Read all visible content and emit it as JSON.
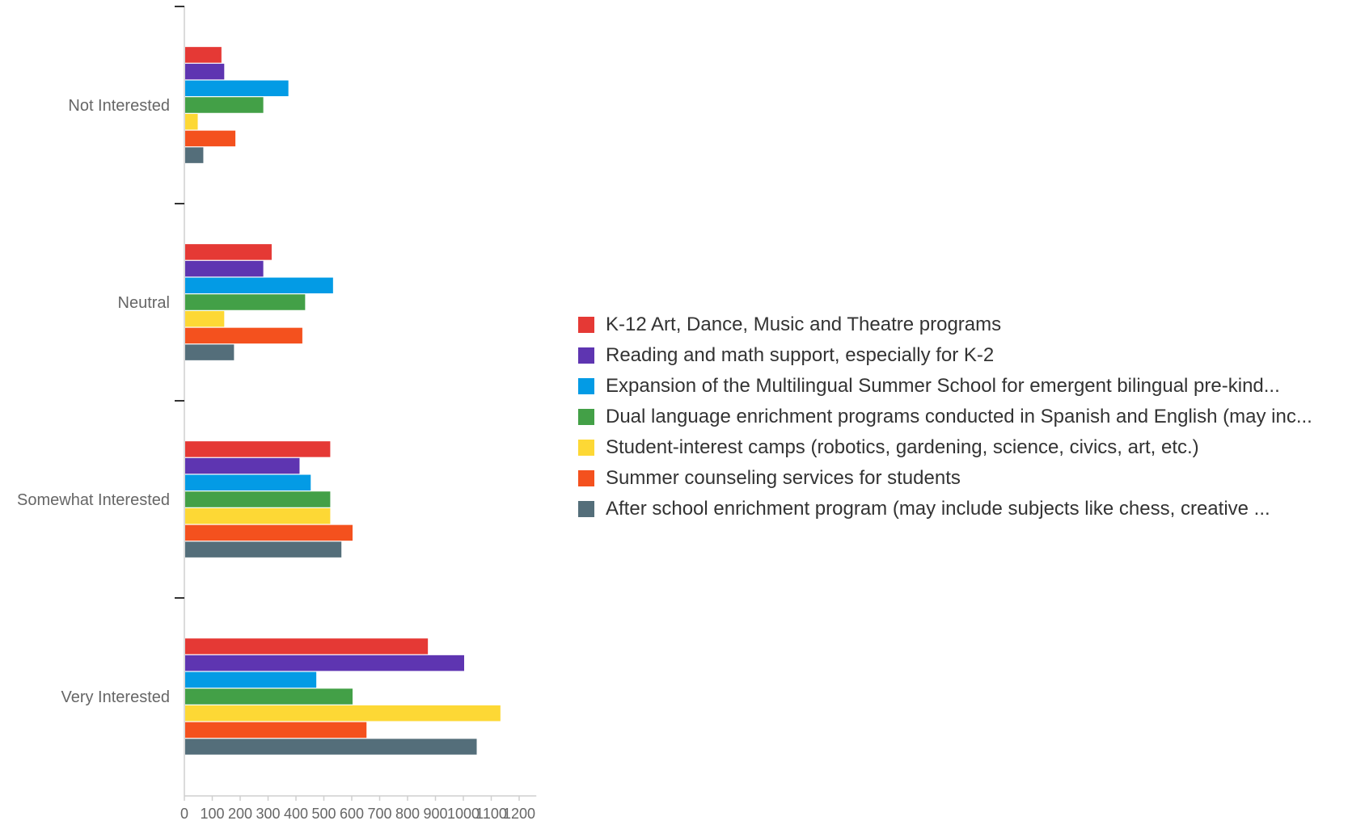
{
  "chart_data": {
    "type": "bar",
    "orientation": "horizontal",
    "categories": [
      "Not Interested",
      "Neutral",
      "Somewhat Interested",
      "Very Interested"
    ],
    "series": [
      {
        "name": "K-12 Art, Dance, Music and Theatre programs",
        "color": "#e53935",
        "values": [
          130,
          310,
          520,
          870
        ]
      },
      {
        "name": "Reading and math support, especially for K-2",
        "color": "#5e35b1",
        "values": [
          140,
          280,
          410,
          1000
        ]
      },
      {
        "name": "Expansion of the Multilingual Summer School for emergent bilingual pre-kind...",
        "color": "#039be5",
        "values": [
          370,
          530,
          450,
          470
        ]
      },
      {
        "name": "Dual language enrichment programs conducted in Spanish and English (may inc...",
        "color": "#43a047",
        "values": [
          280,
          430,
          520,
          600
        ]
      },
      {
        "name": "Student-interest camps (robotics, gardening, science, civics, art, etc.)",
        "color": "#fdd835",
        "values": [
          45,
          140,
          520,
          1130
        ]
      },
      {
        "name": "Summer counseling services for students",
        "color": "#f4511e",
        "values": [
          180,
          420,
          600,
          650
        ]
      },
      {
        "name": "After school enrichment program (may include subjects like chess, creative ...",
        "color": "#546e7a",
        "values": [
          65,
          175,
          560,
          1045
        ]
      }
    ],
    "xticks": [
      0,
      100,
      200,
      300,
      400,
      500,
      600,
      700,
      800,
      900,
      1000,
      1100,
      1200
    ],
    "xlim": [
      0,
      1250
    ],
    "title": "",
    "xlabel": "",
    "ylabel": "",
    "grid": false,
    "legend": "right"
  }
}
